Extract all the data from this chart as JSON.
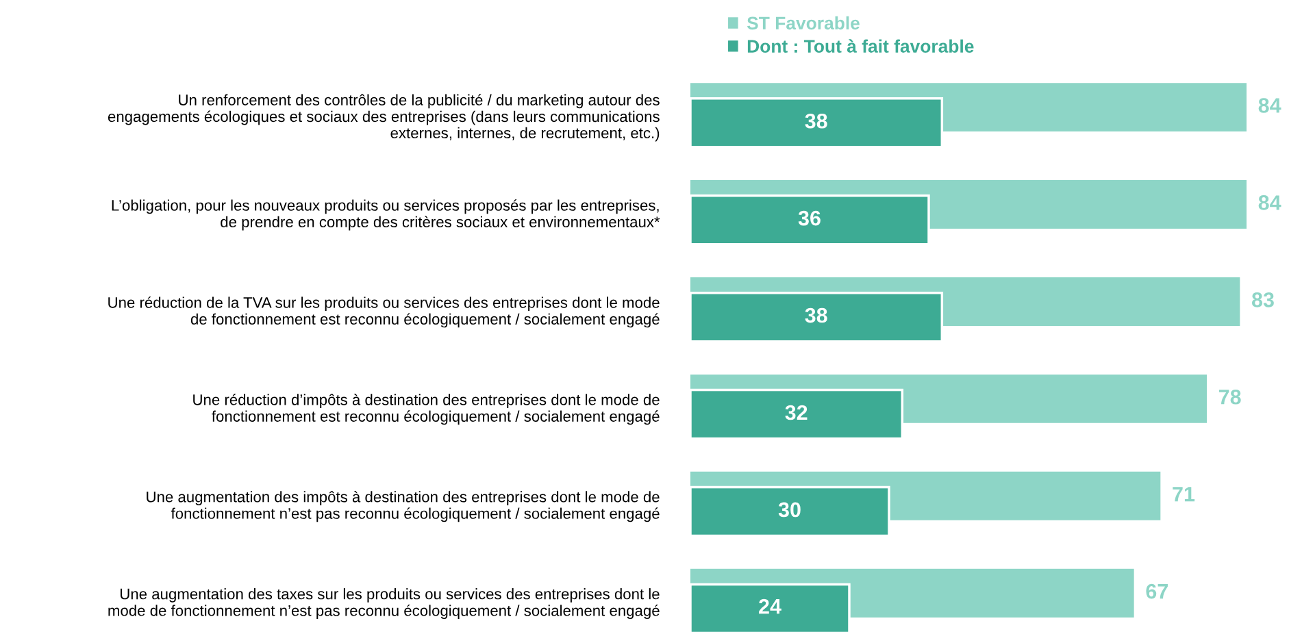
{
  "chart_data": {
    "type": "bar",
    "orientation": "horizontal",
    "categories": [
      "Un renforcement des contrôles de la publicité / du marketing autour des\nengagements écologiques et sociaux des entreprises (dans leurs communications\nexternes, internes, de recrutement, etc.)",
      "L’obligation, pour les nouveaux produits ou services proposés par les entreprises,\nde prendre en compte des critères sociaux et environnementaux*",
      "Une réduction de la TVA sur les produits ou services des entreprises dont le mode\nde fonctionnement est reconnu écologiquement / socialement engagé",
      "Une réduction d’impôts à destination des entreprises dont le mode de\nfonctionnement est reconnu écologiquement / socialement engagé",
      "Une augmentation des impôts à destination des entreprises dont le mode de\nfonctionnement n’est pas reconnu écologiquement / socialement engagé",
      "Une augmentation des taxes sur les produits ou services des entreprises dont le\nmode de fonctionnement n’est pas reconnu écologiquement / socialement engagé"
    ],
    "series": [
      {
        "name": "ST Favorable",
        "color": "#8dd5c6",
        "values": [
          84,
          84,
          83,
          78,
          71,
          67
        ]
      },
      {
        "name": "Dont : Tout à fait favorable",
        "color": "#3dab94",
        "values": [
          38,
          36,
          38,
          32,
          30,
          24
        ]
      }
    ],
    "data_labels": true,
    "legend": "top",
    "tick_labels": "y"
  }
}
